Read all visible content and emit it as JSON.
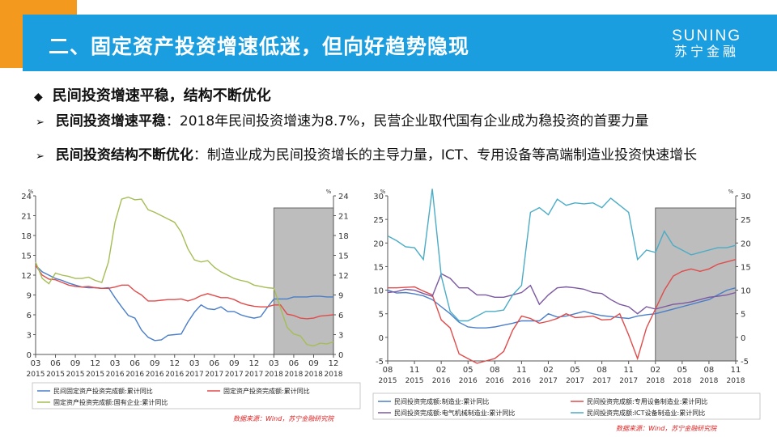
{
  "header": {
    "title": "二、固定资产投资增速低迷，但向好趋势隐现",
    "logo_en": "SUNING",
    "logo_cn": "苏宁金融"
  },
  "bullets": {
    "main": "民间投资增速平稳，结构不断优化",
    "sub1_bold": "民间投资增速平稳",
    "sub1_text": "：2018年民间投资增速为8.7%，民营企业取代国有企业成为稳投资的首要力量",
    "sub2_bold": "民间投资结构不断优化",
    "sub2_text": "：制造业成为民间投资增长的主导力量，ICT、专用设备等高端制造业投资快速增长"
  },
  "colors": {
    "blue": "#4a7ec8",
    "red": "#e04b4b",
    "olive": "#a4be55",
    "purple": "#7b58a0",
    "teal": "#4bacc6",
    "shade": "#bdbdbd"
  },
  "chart_data": [
    {
      "type": "line",
      "unit": "%",
      "x_tick_months": [
        "03",
        "06",
        "09",
        "12",
        "03",
        "06",
        "09",
        "12",
        "03",
        "06",
        "09",
        "12",
        "03",
        "06",
        "09",
        "12"
      ],
      "x_tick_years": [
        "2015",
        "2015",
        "2015",
        "2015",
        "2016",
        "2016",
        "2016",
        "2016",
        "2017",
        "2017",
        "2017",
        "2017",
        "2018",
        "2018",
        "2018",
        "2018"
      ],
      "x_range": [
        0,
        45
      ],
      "ylim": [
        0,
        24
      ],
      "y_ticks": [
        0,
        3,
        6,
        9,
        12,
        15,
        18,
        21,
        24
      ],
      "shaded_x_range": [
        36,
        45
      ],
      "series": [
        {
          "name": "民间固定资产投资完成额:累计同比",
          "color_key": "blue",
          "x": [
            0,
            1,
            2,
            3,
            4,
            5,
            6,
            7,
            8,
            9,
            10,
            11,
            12,
            13,
            14,
            15,
            16,
            17,
            18,
            19,
            20,
            21,
            22,
            23,
            24,
            25,
            26,
            27,
            28,
            29,
            30,
            31,
            32,
            33,
            34,
            35,
            36,
            37,
            38,
            39,
            40,
            41,
            42,
            43,
            44,
            45
          ],
          "y": [
            13.5,
            12.5,
            12,
            11.5,
            11.2,
            10.8,
            10.5,
            10.2,
            10.1,
            10.1,
            10,
            10.1,
            8.6,
            7.2,
            5.9,
            5.5,
            3.7,
            2.6,
            2.1,
            2.2,
            2.9,
            3,
            3.1,
            4.9,
            6.4,
            7.5,
            6.9,
            6.8,
            7.2,
            6.5,
            6.5,
            6,
            5.7,
            5.5,
            5.7,
            7.1,
            8.4,
            8.4,
            8.4,
            8.7,
            8.7,
            8.7,
            8.8,
            8.8,
            8.7,
            8.7
          ]
        },
        {
          "name": "固定资产投资完成额:累计同比",
          "color_key": "red",
          "x": [
            0,
            1,
            2,
            3,
            4,
            5,
            6,
            7,
            8,
            9,
            10,
            11,
            12,
            13,
            14,
            15,
            16,
            17,
            18,
            19,
            20,
            21,
            22,
            23,
            24,
            25,
            26,
            27,
            28,
            29,
            30,
            31,
            32,
            33,
            34,
            35,
            36,
            37,
            38,
            39,
            40,
            41,
            42,
            43,
            44,
            45
          ],
          "y": [
            13.5,
            12,
            11.4,
            11.3,
            10.9,
            10.5,
            10.3,
            10.2,
            10.3,
            10.1,
            10,
            10,
            10.2,
            10.5,
            10.5,
            9.6,
            9,
            8.1,
            8.1,
            8.2,
            8.3,
            8.3,
            8.4,
            8.1,
            8.4,
            8.9,
            9.2,
            8.9,
            8.6,
            8.6,
            8.3,
            7.8,
            7.5,
            7.3,
            7.2,
            7.2,
            7.5,
            7.5,
            6.1,
            5.9,
            5.5,
            5.4,
            5.5,
            5.8,
            5.9,
            6
          ]
        },
        {
          "name": "固定资产投资完成额:国有企业:累计同比",
          "color_key": "olive",
          "x": [
            0,
            1,
            2,
            3,
            4,
            5,
            6,
            7,
            8,
            9,
            10,
            11,
            12,
            13,
            14,
            15,
            16,
            17,
            18,
            19,
            20,
            21,
            22,
            23,
            24,
            25,
            26,
            27,
            28,
            29,
            30,
            31,
            32,
            33,
            34,
            35,
            36,
            37,
            38,
            39,
            40,
            41,
            42,
            43,
            44,
            45
          ],
          "y": [
            14,
            11.5,
            10.7,
            12.3,
            12,
            11.8,
            11.5,
            11.5,
            11.7,
            11.2,
            10.9,
            14,
            20,
            23.5,
            23.8,
            23.4,
            23.5,
            21.9,
            21.5,
            21,
            20.5,
            20,
            18.5,
            16,
            14.3,
            14,
            14.2,
            13.2,
            12.5,
            12,
            11.5,
            11.2,
            11,
            10.5,
            10.3,
            10.1,
            10,
            7,
            4.1,
            3.1,
            2.8,
            1.5,
            1.3,
            1.7,
            1.6,
            1.9
          ]
        }
      ],
      "legend": "bottom"
    },
    {
      "type": "line",
      "unit": "%",
      "x_tick_months": [
        "08",
        "11",
        "02",
        "05",
        "08",
        "11",
        "02",
        "05",
        "08",
        "11",
        "02",
        "05",
        "08",
        "11"
      ],
      "x_tick_years": [
        "2015",
        "2015",
        "2016",
        "2016",
        "2016",
        "2016",
        "2017",
        "2017",
        "2017",
        "2017",
        "2018",
        "2018",
        "2018",
        "2018"
      ],
      "x_range": [
        0,
        39
      ],
      "ylim": [
        -5,
        30
      ],
      "y_ticks": [
        -5,
        0,
        5,
        10,
        15,
        20,
        25,
        30
      ],
      "shaded_x_range": [
        30,
        39
      ],
      "series": [
        {
          "name": "民间投资完成额:制造业:累计同比",
          "color_key": "blue",
          "x": [
            0,
            1,
            2,
            3,
            4,
            5,
            6,
            7,
            8,
            9,
            10,
            11,
            12,
            13,
            14,
            15,
            16,
            17,
            18,
            19,
            20,
            21,
            22,
            23,
            24,
            25,
            26,
            27,
            28,
            29,
            30,
            31,
            32,
            33,
            34,
            35,
            36,
            37,
            38,
            39
          ],
          "y": [
            10,
            9.4,
            9.5,
            9.2,
            8.8,
            8,
            6.5,
            5,
            3.2,
            2.2,
            2,
            2,
            2.2,
            2.6,
            3,
            3.5,
            3.5,
            3.5,
            5,
            4.3,
            4.5,
            5,
            5.5,
            5,
            4.6,
            4.4,
            4.2,
            4,
            4.5,
            4.8,
            5,
            5.5,
            6,
            6.5,
            7,
            7.5,
            8,
            9,
            10,
            10.5
          ]
        },
        {
          "name": "民间投资完成额:专用设备制造业:累计同比",
          "color_key": "red",
          "x": [
            0,
            1,
            2,
            3,
            4,
            5,
            6,
            7,
            8,
            9,
            10,
            11,
            12,
            13,
            14,
            15,
            16,
            17,
            18,
            19,
            20,
            21,
            22,
            23,
            24,
            25,
            26,
            27,
            28,
            29,
            30,
            31,
            32,
            33,
            34,
            35,
            36,
            37,
            38,
            39
          ],
          "y": [
            10.5,
            10.5,
            10.6,
            10.7,
            9.8,
            9,
            3.7,
            2,
            -3.5,
            -4.5,
            -5.5,
            -5,
            -4.5,
            -3,
            1.5,
            4.5,
            4,
            3,
            3.4,
            4,
            5,
            4.2,
            4.3,
            4.5,
            3.7,
            3.8,
            5,
            0.5,
            -4.5,
            2,
            6,
            10,
            13,
            14,
            14.5,
            14,
            14.5,
            15.5,
            16,
            16.5
          ]
        },
        {
          "name": "民间投资完成额:电气机械制造业:累计同比",
          "color_key": "purple",
          "x": [
            0,
            1,
            2,
            3,
            4,
            5,
            6,
            7,
            8,
            9,
            10,
            11,
            12,
            13,
            14,
            15,
            16,
            17,
            18,
            19,
            20,
            21,
            22,
            23,
            24,
            25,
            26,
            27,
            28,
            29,
            30,
            31,
            32,
            33,
            34,
            35,
            36,
            37,
            38,
            39
          ],
          "y": [
            9.5,
            9.7,
            10.2,
            10,
            9.3,
            8.7,
            13.5,
            12.5,
            10.5,
            10.5,
            9,
            9,
            8.5,
            8.5,
            9,
            9.5,
            11,
            7,
            9,
            10.5,
            10.7,
            10.5,
            10.2,
            9.5,
            9.3,
            8,
            7,
            6.5,
            5,
            6.5,
            6,
            6.5,
            7,
            7.2,
            7.5,
            8,
            8.5,
            8.7,
            9,
            9.5
          ]
        },
        {
          "name": "民间投资完成额:ICT设备制造业:累计同比",
          "color_key": "teal",
          "x": [
            0,
            1,
            2,
            3,
            4,
            5,
            6,
            7,
            8,
            9,
            10,
            11,
            12,
            13,
            14,
            15,
            16,
            17,
            18,
            19,
            20,
            21,
            22,
            23,
            24,
            25,
            26,
            27,
            28,
            29,
            30,
            31,
            32,
            33,
            34,
            35,
            36,
            37,
            38,
            39
          ],
          "y": [
            21.5,
            20.5,
            19.2,
            19,
            16.5,
            31.5,
            13,
            5.5,
            3.5,
            3.5,
            4.5,
            5.5,
            5.5,
            5.8,
            9,
            11,
            26.5,
            27.5,
            26,
            29.3,
            28,
            28.5,
            28.3,
            28.5,
            27.5,
            29.5,
            28,
            26.5,
            16.5,
            18.5,
            18,
            22.5,
            19.5,
            18.5,
            17.5,
            18,
            18.5,
            19,
            19,
            19.5
          ]
        }
      ],
      "legend": "bottom"
    }
  ],
  "sources": {
    "chart1": "数据来源：Wind，苏宁金融研究院",
    "chart2": "数据来源：Wind，苏宁金融研究院"
  }
}
